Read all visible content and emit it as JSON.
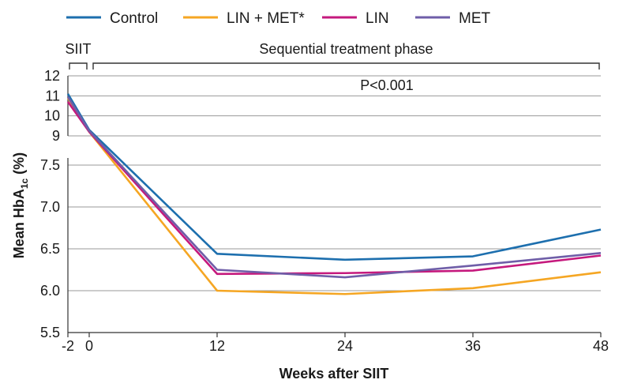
{
  "chart_data": {
    "type": "line",
    "x": [
      -2,
      0,
      12,
      24,
      36,
      48
    ],
    "xticks": [
      "-2",
      "0",
      "12",
      "24",
      "36",
      "48"
    ],
    "xlabel": "Weeks after SIIT",
    "ylabel_main": "Mean HbA",
    "ylabel_sub": "1c",
    "ylabel_unit": "(%)",
    "yaxis_upper": {
      "ticks": [
        "12",
        "11",
        "10",
        "9"
      ],
      "range": [
        8.8,
        12
      ]
    },
    "yaxis_lower": {
      "ticks": [
        "7.5",
        "7.0",
        "6.5",
        "6.0",
        "5.5"
      ],
      "range": [
        5.5,
        7.7
      ]
    },
    "axis_break": true,
    "grid": true,
    "legend_position": "top",
    "phases": [
      {
        "label": "SIIT",
        "from": -2,
        "to": 0
      },
      {
        "label": "Sequential treatment phase",
        "from": 0,
        "to": 48
      }
    ],
    "annotation": "P<0.001",
    "series": [
      {
        "name": "Control",
        "color": "#1d6fae",
        "values": [
          11.1,
          9.3,
          6.44,
          6.37,
          6.41,
          6.73
        ]
      },
      {
        "name": "LIN + MET*",
        "color": "#f5a623",
        "values": [
          10.9,
          9.2,
          6.0,
          5.96,
          6.03,
          6.22
        ]
      },
      {
        "name": "LIN",
        "color": "#c5197d",
        "values": [
          10.7,
          9.2,
          6.2,
          6.21,
          6.24,
          6.42
        ]
      },
      {
        "name": "MET",
        "color": "#6f5ea8",
        "values": [
          10.95,
          9.25,
          6.25,
          6.16,
          6.3,
          6.45
        ]
      }
    ]
  }
}
